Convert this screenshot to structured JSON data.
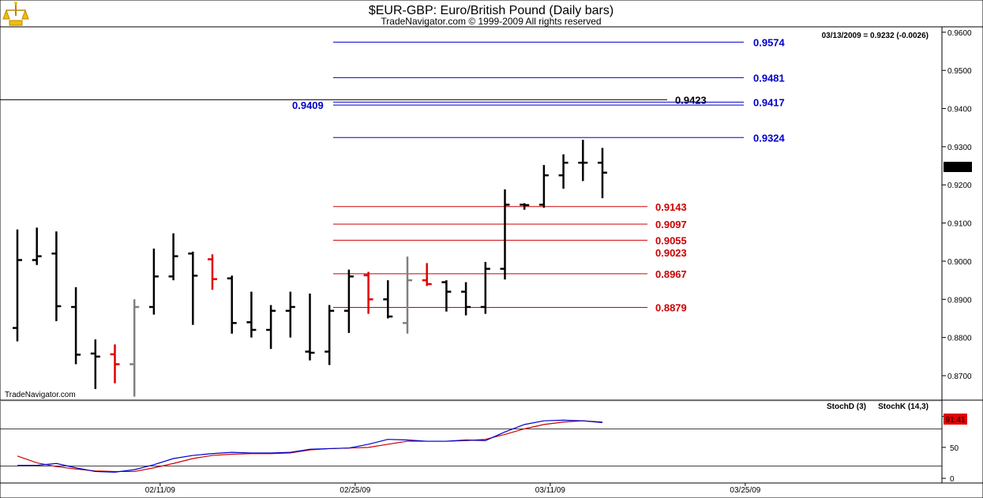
{
  "header": {
    "title": "$EUR-GBP:  Euro/British Pound  (Daily bars)",
    "copyright": "TradeNavigator.com © 1999-2009 All rights reserved",
    "quote": "03/13/2009 = 0.9232 (-0.0026)",
    "watermark": "TradeNavigator.com",
    "last_price": "0.9232"
  },
  "colors": {
    "up": "#000000",
    "down": "#e00000",
    "unchanged": "#808080",
    "resistance": "#0000cc",
    "support": "#cc0000",
    "stoch_d": "#cc0000",
    "stoch_k": "#0000cc",
    "logo": "#d4a017"
  },
  "chart_data": [
    {
      "type": "ohlc",
      "title": "$EUR-GBP:  Euro/British Pound  (Daily bars)",
      "ylim": [
        0.864,
        0.961
      ],
      "y_ticks": [
        "0.8700",
        "0.8800",
        "0.8900",
        "0.9000",
        "0.9100",
        "0.9200",
        "0.9300",
        "0.9400",
        "0.9500",
        "0.9600"
      ],
      "x_ticks": [
        {
          "label": "02/11/09",
          "bar": 7
        },
        {
          "label": "02/25/09",
          "bar": 17
        },
        {
          "label": "03/11/09",
          "bar": 27
        },
        {
          "label": "03/25/09",
          "bar": 37
        }
      ],
      "bars": [
        {
          "o": 0.8825,
          "h": 0.9083,
          "l": 0.879,
          "c": 0.9003,
          "dir": "up"
        },
        {
          "o": 0.9003,
          "h": 0.9088,
          "l": 0.899,
          "c": 0.9013,
          "dir": "up"
        },
        {
          "o": 0.902,
          "h": 0.9078,
          "l": 0.8843,
          "c": 0.8882,
          "dir": "up"
        },
        {
          "o": 0.888,
          "h": 0.8932,
          "l": 0.873,
          "c": 0.8755,
          "dir": "up"
        },
        {
          "o": 0.8758,
          "h": 0.8795,
          "l": 0.8665,
          "c": 0.875,
          "dir": "up"
        },
        {
          "o": 0.8756,
          "h": 0.8782,
          "l": 0.868,
          "c": 0.873,
          "dir": "down"
        },
        {
          "o": 0.873,
          "h": 0.89,
          "l": 0.8645,
          "c": 0.888,
          "dir": "unchanged"
        },
        {
          "o": 0.888,
          "h": 0.9033,
          "l": 0.886,
          "c": 0.896,
          "dir": "up"
        },
        {
          "o": 0.896,
          "h": 0.9073,
          "l": 0.895,
          "c": 0.9013,
          "dir": "up"
        },
        {
          "o": 0.902,
          "h": 0.9025,
          "l": 0.8833,
          "c": 0.8962,
          "dir": "up"
        },
        {
          "o": 0.9005,
          "h": 0.9018,
          "l": 0.8925,
          "c": 0.8953,
          "dir": "down"
        },
        {
          "o": 0.8955,
          "h": 0.8962,
          "l": 0.881,
          "c": 0.8838,
          "dir": "up"
        },
        {
          "o": 0.884,
          "h": 0.892,
          "l": 0.88,
          "c": 0.882,
          "dir": "up"
        },
        {
          "o": 0.882,
          "h": 0.8885,
          "l": 0.877,
          "c": 0.887,
          "dir": "up"
        },
        {
          "o": 0.887,
          "h": 0.892,
          "l": 0.88,
          "c": 0.888,
          "dir": "up"
        },
        {
          "o": 0.8763,
          "h": 0.8915,
          "l": 0.874,
          "c": 0.876,
          "dir": "up"
        },
        {
          "o": 0.8763,
          "h": 0.8885,
          "l": 0.8728,
          "c": 0.887,
          "dir": "up"
        },
        {
          "o": 0.887,
          "h": 0.8978,
          "l": 0.8812,
          "c": 0.896,
          "dir": "up"
        },
        {
          "o": 0.8963,
          "h": 0.8972,
          "l": 0.8862,
          "c": 0.89,
          "dir": "down"
        },
        {
          "o": 0.89,
          "h": 0.895,
          "l": 0.885,
          "c": 0.8855,
          "dir": "up"
        },
        {
          "o": 0.8838,
          "h": 0.9012,
          "l": 0.881,
          "c": 0.895,
          "dir": "unchanged"
        },
        {
          "o": 0.895,
          "h": 0.8995,
          "l": 0.8935,
          "c": 0.894,
          "dir": "down"
        },
        {
          "o": 0.8945,
          "h": 0.895,
          "l": 0.8868,
          "c": 0.892,
          "dir": "up"
        },
        {
          "o": 0.892,
          "h": 0.8945,
          "l": 0.8858,
          "c": 0.888,
          "dir": "up"
        },
        {
          "o": 0.888,
          "h": 0.8998,
          "l": 0.8862,
          "c": 0.898,
          "dir": "up"
        },
        {
          "o": 0.898,
          "h": 0.9188,
          "l": 0.8952,
          "c": 0.9148,
          "dir": "up"
        },
        {
          "o": 0.9148,
          "h": 0.9152,
          "l": 0.9135,
          "c": 0.9147,
          "dir": "up"
        },
        {
          "o": 0.9148,
          "h": 0.9252,
          "l": 0.914,
          "c": 0.9225,
          "dir": "up"
        },
        {
          "o": 0.9225,
          "h": 0.928,
          "l": 0.919,
          "c": 0.9258,
          "dir": "up"
        },
        {
          "o": 0.9258,
          "h": 0.9318,
          "l": 0.921,
          "c": 0.9258,
          "dir": "up"
        },
        {
          "o": 0.9258,
          "h": 0.9297,
          "l": 0.9165,
          "c": 0.9232,
          "dir": "up"
        }
      ],
      "reference_line": {
        "value": 0.9423,
        "label": "0.9423"
      },
      "resistance": [
        {
          "value": 0.9574,
          "label": "0.9574"
        },
        {
          "value": 0.9481,
          "label": "0.9481"
        },
        {
          "value": 0.9417,
          "label": "0.9417"
        },
        {
          "value": 0.9409,
          "label": "0.9409"
        },
        {
          "value": 0.9324,
          "label": "0.9324"
        }
      ],
      "support": [
        {
          "value": 0.9143,
          "label": "0.9143"
        },
        {
          "value": 0.9097,
          "label": "0.9097"
        },
        {
          "value": 0.9055,
          "label": "0.9055"
        },
        {
          "value": 0.9023,
          "label": "0.9023"
        },
        {
          "value": 0.8967,
          "label": "0.8967"
        },
        {
          "value": 0.8879,
          "label": "0.8879"
        }
      ]
    },
    {
      "type": "line",
      "ylim": [
        -5,
        120
      ],
      "y_ticks": [
        {
          "value": 0,
          "label": "0"
        },
        {
          "value": 50,
          "label": "50"
        },
        {
          "value": 100,
          "label": "100"
        }
      ],
      "hlines": [
        20,
        80
      ],
      "last_value": "91.41",
      "series": [
        {
          "name": "StochD (3)",
          "values": [
            36,
            25,
            19,
            15,
            12,
            11,
            11,
            17,
            24,
            32,
            37,
            39,
            40,
            40,
            41,
            46,
            48,
            49,
            50,
            55,
            60,
            60,
            60,
            61,
            63,
            71,
            80,
            87,
            91,
            93,
            91
          ]
        },
        {
          "name": "StochK (14,3)",
          "values": [
            21,
            21,
            24,
            17,
            11,
            10,
            14,
            22,
            32,
            37,
            40,
            42,
            41,
            41,
            42,
            47,
            48,
            49,
            55,
            63,
            62,
            60,
            60,
            62,
            61,
            75,
            87,
            93,
            94,
            93,
            90
          ]
        }
      ]
    }
  ]
}
